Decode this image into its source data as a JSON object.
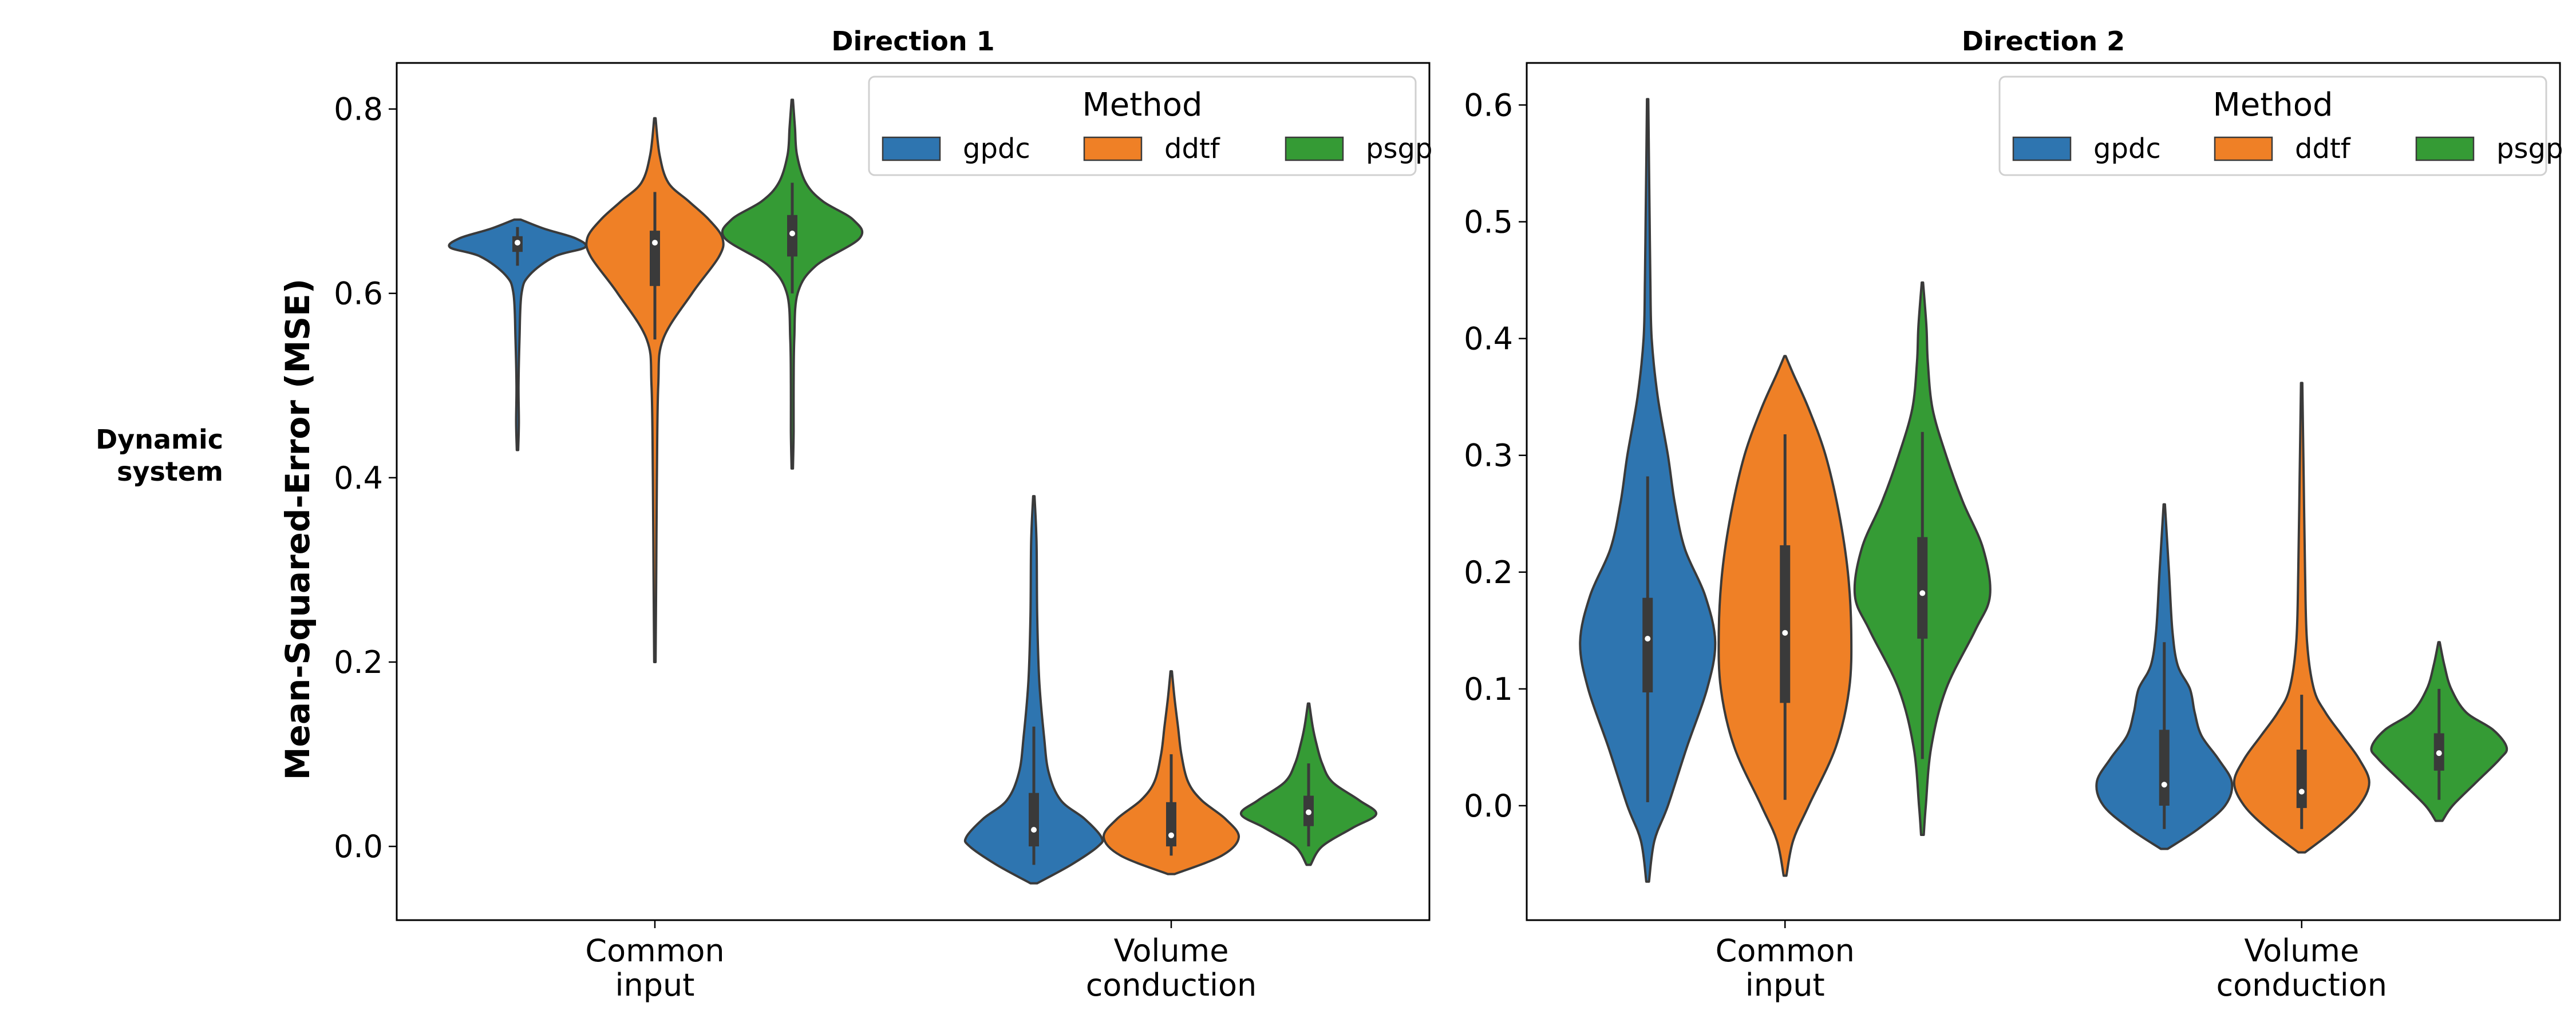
{
  "figure": {
    "row_label": [
      "Dynamic",
      "system"
    ],
    "ylabel": "Mean-Squared-Error (MSE)"
  },
  "legend": {
    "title": "Method",
    "entries": [
      {
        "name": "gpdc",
        "color": "#2e75b0"
      },
      {
        "name": "ddtf",
        "color": "#ef8026"
      },
      {
        "name": "psgp",
        "color": "#359b35"
      }
    ]
  },
  "chart_data": [
    {
      "type": "violin",
      "title": "Direction 1",
      "ylabel": "Mean-Squared-Error (MSE)",
      "ylim": [
        -0.08,
        0.85
      ],
      "yticks": [
        "0.0",
        "0.2",
        "0.4",
        "0.6",
        "0.8"
      ],
      "categories": [
        [
          "Common",
          "input"
        ],
        [
          "Volume",
          "conduction"
        ]
      ],
      "legend_position": "top-right",
      "series": [
        {
          "name": "gpdc",
          "groups": [
            {
              "min": 0.43,
              "max": 0.68,
              "q1": 0.645,
              "median": 0.655,
              "q3": 0.662,
              "wlo": 0.63,
              "whi": 0.672,
              "profile": [
                [
                  0.43,
                  0.01
                ],
                [
                  0.46,
                  0.02
                ],
                [
                  0.5,
                  0.015
                ],
                [
                  0.55,
                  0.03
                ],
                [
                  0.6,
                  0.06
                ],
                [
                  0.62,
                  0.18
                ],
                [
                  0.64,
                  0.55
                ],
                [
                  0.65,
                  1.0
                ],
                [
                  0.66,
                  0.85
                ],
                [
                  0.67,
                  0.4
                ],
                [
                  0.68,
                  0.05
                ]
              ]
            },
            {
              "min": -0.04,
              "max": 0.38,
              "q1": 0.0,
              "median": 0.018,
              "q3": 0.058,
              "wlo": -0.02,
              "whi": 0.13,
              "profile": [
                [
                  -0.04,
                  0.05
                ],
                [
                  -0.02,
                  0.55
                ],
                [
                  0.0,
                  0.95
                ],
                [
                  0.01,
                  1.0
                ],
                [
                  0.03,
                  0.75
                ],
                [
                  0.05,
                  0.4
                ],
                [
                  0.08,
                  0.22
                ],
                [
                  0.12,
                  0.15
                ],
                [
                  0.18,
                  0.08
                ],
                [
                  0.25,
                  0.05
                ],
                [
                  0.33,
                  0.04
                ],
                [
                  0.38,
                  0.01
                ]
              ]
            }
          ]
        },
        {
          "name": "ddtf",
          "groups": [
            {
              "min": 0.2,
              "max": 0.79,
              "q1": 0.608,
              "median": 0.655,
              "q3": 0.668,
              "wlo": 0.55,
              "whi": 0.71,
              "profile": [
                [
                  0.2,
                  0.01
                ],
                [
                  0.3,
                  0.02
                ],
                [
                  0.4,
                  0.03
                ],
                [
                  0.5,
                  0.05
                ],
                [
                  0.55,
                  0.12
                ],
                [
                  0.6,
                  0.55
                ],
                [
                  0.64,
                  0.95
                ],
                [
                  0.66,
                  1.0
                ],
                [
                  0.68,
                  0.8
                ],
                [
                  0.7,
                  0.5
                ],
                [
                  0.72,
                  0.2
                ],
                [
                  0.75,
                  0.07
                ],
                [
                  0.79,
                  0.01
                ]
              ]
            },
            {
              "min": -0.03,
              "max": 0.19,
              "q1": 0.0,
              "median": 0.012,
              "q3": 0.048,
              "wlo": -0.01,
              "whi": 0.1,
              "profile": [
                [
                  -0.03,
                  0.05
                ],
                [
                  -0.01,
                  0.75
                ],
                [
                  0.01,
                  1.0
                ],
                [
                  0.03,
                  0.8
                ],
                [
                  0.05,
                  0.45
                ],
                [
                  0.07,
                  0.25
                ],
                [
                  0.1,
                  0.15
                ],
                [
                  0.13,
                  0.1
                ],
                [
                  0.16,
                  0.05
                ],
                [
                  0.19,
                  0.01
                ]
              ]
            }
          ]
        },
        {
          "name": "psgp",
          "groups": [
            {
              "min": 0.41,
              "max": 0.81,
              "q1": 0.64,
              "median": 0.665,
              "q3": 0.685,
              "wlo": 0.6,
              "whi": 0.72,
              "profile": [
                [
                  0.41,
                  0.01
                ],
                [
                  0.45,
                  0.02
                ],
                [
                  0.5,
                  0.02
                ],
                [
                  0.55,
                  0.03
                ],
                [
                  0.6,
                  0.08
                ],
                [
                  0.63,
                  0.35
                ],
                [
                  0.66,
                  1.0
                ],
                [
                  0.68,
                  0.9
                ],
                [
                  0.7,
                  0.45
                ],
                [
                  0.72,
                  0.2
                ],
                [
                  0.75,
                  0.07
                ],
                [
                  0.78,
                  0.04
                ],
                [
                  0.81,
                  0.01
                ]
              ]
            },
            {
              "min": -0.02,
              "max": 0.155,
              "q1": 0.022,
              "median": 0.037,
              "q3": 0.055,
              "wlo": 0.0,
              "whi": 0.09,
              "profile": [
                [
                  -0.02,
                  0.03
                ],
                [
                  0.0,
                  0.2
                ],
                [
                  0.02,
                  0.65
                ],
                [
                  0.035,
                  1.0
                ],
                [
                  0.05,
                  0.75
                ],
                [
                  0.07,
                  0.35
                ],
                [
                  0.09,
                  0.2
                ],
                [
                  0.11,
                  0.12
                ],
                [
                  0.13,
                  0.06
                ],
                [
                  0.155,
                  0.01
                ]
              ]
            }
          ]
        }
      ]
    },
    {
      "type": "violin",
      "title": "Direction 2",
      "ylabel": "",
      "ylim": [
        -0.098,
        0.636
      ],
      "yticks": [
        "0.0",
        "0.1",
        "0.2",
        "0.3",
        "0.4",
        "0.5",
        "0.6"
      ],
      "categories": [
        [
          "Common",
          "input"
        ],
        [
          "Volume",
          "conduction"
        ]
      ],
      "legend_position": "top-right",
      "series": [
        {
          "name": "gpdc",
          "groups": [
            {
              "min": -0.065,
              "max": 0.605,
              "q1": 0.097,
              "median": 0.143,
              "q3": 0.178,
              "wlo": 0.003,
              "whi": 0.282,
              "profile": [
                [
                  -0.065,
                  0.02
                ],
                [
                  -0.03,
                  0.1
                ],
                [
                  0.0,
                  0.3
                ],
                [
                  0.05,
                  0.58
                ],
                [
                  0.1,
                  0.88
                ],
                [
                  0.14,
                  1.0
                ],
                [
                  0.18,
                  0.85
                ],
                [
                  0.22,
                  0.55
                ],
                [
                  0.26,
                  0.4
                ],
                [
                  0.3,
                  0.3
                ],
                [
                  0.35,
                  0.15
                ],
                [
                  0.4,
                  0.06
                ],
                [
                  0.45,
                  0.04
                ],
                [
                  0.5,
                  0.03
                ],
                [
                  0.55,
                  0.02
                ],
                [
                  0.605,
                  0.01
                ]
              ]
            },
            {
              "min": -0.037,
              "max": 0.258,
              "q1": 0.0,
              "median": 0.018,
              "q3": 0.065,
              "wlo": -0.02,
              "whi": 0.14,
              "profile": [
                [
                  -0.037,
                  0.05
                ],
                [
                  -0.02,
                  0.5
                ],
                [
                  0.0,
                  0.9
                ],
                [
                  0.02,
                  1.0
                ],
                [
                  0.04,
                  0.8
                ],
                [
                  0.06,
                  0.55
                ],
                [
                  0.08,
                  0.45
                ],
                [
                  0.1,
                  0.38
                ],
                [
                  0.12,
                  0.2
                ],
                [
                  0.15,
                  0.12
                ],
                [
                  0.2,
                  0.07
                ],
                [
                  0.258,
                  0.01
                ]
              ]
            }
          ]
        },
        {
          "name": "ddtf",
          "groups": [
            {
              "min": -0.06,
              "max": 0.385,
              "q1": 0.088,
              "median": 0.148,
              "q3": 0.223,
              "wlo": 0.005,
              "whi": 0.318,
              "profile": [
                [
                  -0.06,
                  0.02
                ],
                [
                  -0.03,
                  0.12
                ],
                [
                  0.0,
                  0.35
                ],
                [
                  0.05,
                  0.75
                ],
                [
                  0.1,
                  0.95
                ],
                [
                  0.15,
                  0.98
                ],
                [
                  0.2,
                  0.93
                ],
                [
                  0.25,
                  0.8
                ],
                [
                  0.3,
                  0.6
                ],
                [
                  0.34,
                  0.35
                ],
                [
                  0.37,
                  0.12
                ],
                [
                  0.385,
                  0.01
                ]
              ]
            },
            {
              "min": -0.04,
              "max": 0.362,
              "q1": -0.002,
              "median": 0.012,
              "q3": 0.048,
              "wlo": -0.02,
              "whi": 0.095,
              "profile": [
                [
                  -0.04,
                  0.05
                ],
                [
                  -0.02,
                  0.5
                ],
                [
                  0.0,
                  0.85
                ],
                [
                  0.02,
                  1.0
                ],
                [
                  0.04,
                  0.85
                ],
                [
                  0.06,
                  0.6
                ],
                [
                  0.08,
                  0.35
                ],
                [
                  0.1,
                  0.18
                ],
                [
                  0.14,
                  0.08
                ],
                [
                  0.2,
                  0.05
                ],
                [
                  0.28,
                  0.03
                ],
                [
                  0.362,
                  0.01
                ]
              ]
            }
          ]
        },
        {
          "name": "psgp",
          "groups": [
            {
              "min": -0.025,
              "max": 0.448,
              "q1": 0.143,
              "median": 0.182,
              "q3": 0.23,
              "wlo": 0.04,
              "whi": 0.32,
              "profile": [
                [
                  -0.025,
                  0.02
                ],
                [
                  0.0,
                  0.05
                ],
                [
                  0.05,
                  0.13
                ],
                [
                  0.1,
                  0.35
                ],
                [
                  0.15,
                  0.78
                ],
                [
                  0.18,
                  1.0
                ],
                [
                  0.22,
                  0.9
                ],
                [
                  0.26,
                  0.6
                ],
                [
                  0.3,
                  0.35
                ],
                [
                  0.34,
                  0.15
                ],
                [
                  0.38,
                  0.08
                ],
                [
                  0.41,
                  0.06
                ],
                [
                  0.448,
                  0.01
                ]
              ]
            },
            {
              "min": -0.013,
              "max": 0.14,
              "q1": 0.03,
              "median": 0.045,
              "q3": 0.062,
              "wlo": 0.005,
              "whi": 0.1,
              "profile": [
                [
                  -0.013,
                  0.05
                ],
                [
                  0.0,
                  0.2
                ],
                [
                  0.02,
                  0.55
                ],
                [
                  0.04,
                  0.9
                ],
                [
                  0.05,
                  1.0
                ],
                [
                  0.065,
                  0.8
                ],
                [
                  0.08,
                  0.4
                ],
                [
                  0.1,
                  0.18
                ],
                [
                  0.12,
                  0.08
                ],
                [
                  0.14,
                  0.01
                ]
              ]
            }
          ]
        }
      ]
    }
  ]
}
